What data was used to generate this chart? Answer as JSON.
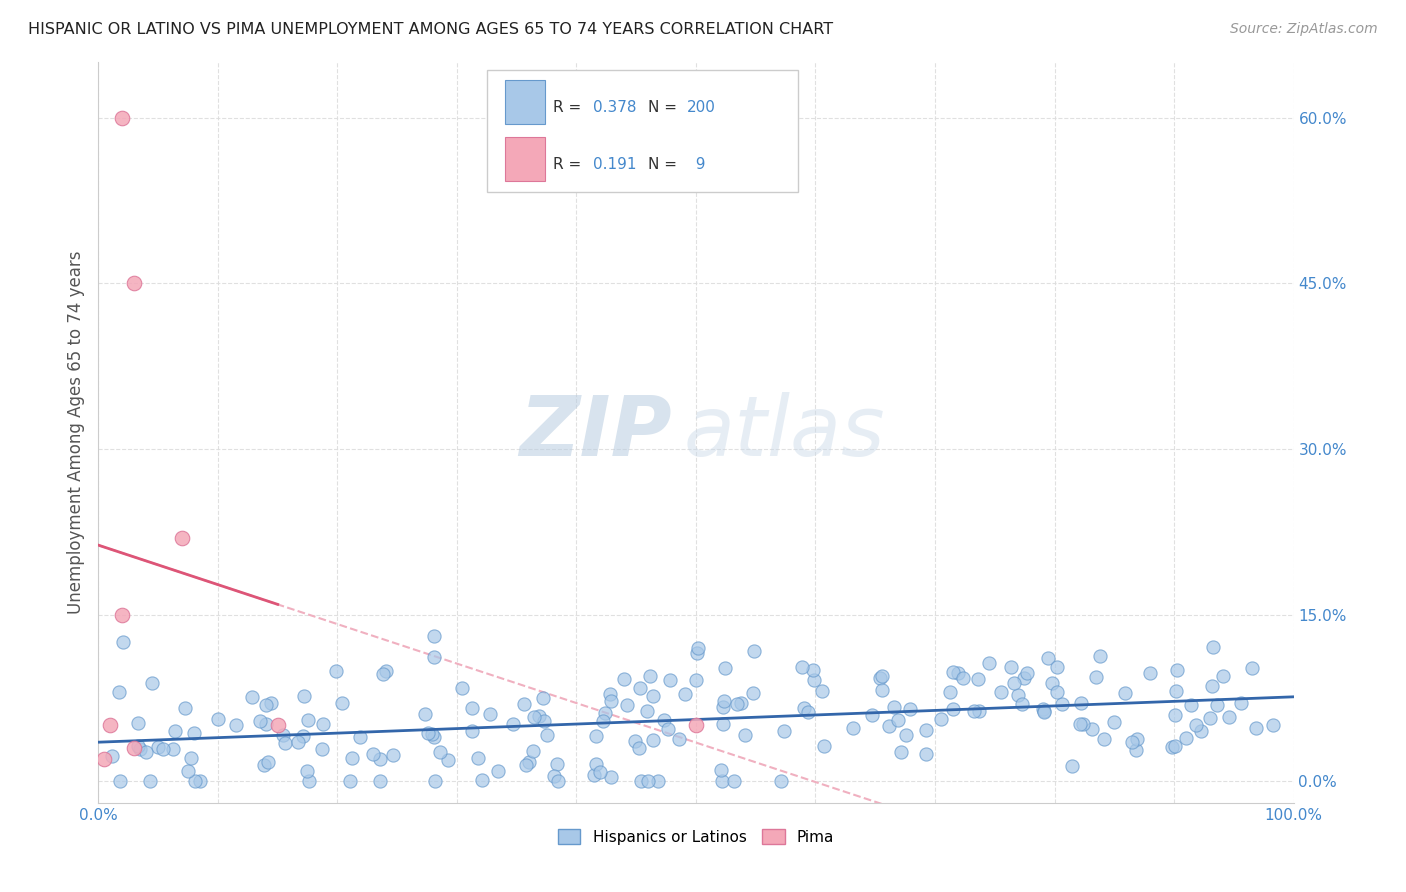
{
  "title": "HISPANIC OR LATINO VS PIMA UNEMPLOYMENT AMONG AGES 65 TO 74 YEARS CORRELATION CHART",
  "source": "Source: ZipAtlas.com",
  "ylabel": "Unemployment Among Ages 65 to 74 years",
  "xlim": [
    0,
    100
  ],
  "ylim": [
    -2,
    65
  ],
  "yticks": [
    0,
    15,
    30,
    45,
    60
  ],
  "ytick_labels": [
    "0.0%",
    "15.0%",
    "30.0%",
    "45.0%",
    "60.0%"
  ],
  "xticks": [
    0,
    10,
    20,
    30,
    40,
    50,
    60,
    70,
    80,
    90,
    100
  ],
  "xtick_labels": [
    "0.0%",
    "",
    "",
    "",
    "",
    "",
    "",
    "",
    "",
    "",
    "100.0%"
  ],
  "blue_R": 0.378,
  "blue_N": 200,
  "pink_R": 0.191,
  "pink_N": 9,
  "blue_color": "#a8c8e8",
  "blue_edge_color": "#6699cc",
  "pink_color": "#f4a8b8",
  "pink_edge_color": "#dd7799",
  "blue_line_color": "#3366aa",
  "pink_line_color": "#dd5577",
  "pink_dash_color": "#f0b0c0",
  "watermark_ZIP": "ZIP",
  "watermark_atlas": "atlas",
  "watermark_color": "#c8d8e8",
  "legend_blue_label": "Hispanics or Latinos",
  "legend_pink_label": "Pima",
  "background_color": "#ffffff",
  "grid_color": "#dddddd",
  "title_color": "#222222",
  "axis_label_color": "#555555",
  "tick_color": "#4488cc",
  "seed": 7
}
